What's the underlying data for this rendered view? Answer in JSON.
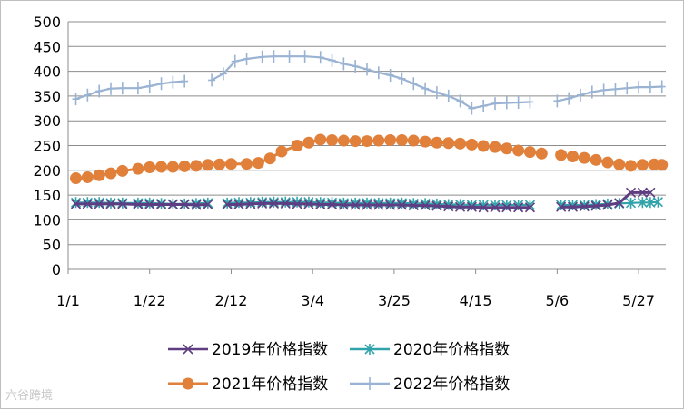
{
  "watermark": "六谷跨境",
  "chart_data": {
    "type": "line",
    "title": "",
    "xlabel": "",
    "ylabel": "",
    "ylim": [
      0,
      500
    ],
    "yticks": [
      0,
      50,
      100,
      150,
      200,
      250,
      300,
      350,
      400,
      450,
      500
    ],
    "x_range_day": [
      1,
      155
    ],
    "xticks": [
      {
        "day": 1,
        "label": "1/1"
      },
      {
        "day": 22,
        "label": "1/22"
      },
      {
        "day": 43,
        "label": "2/12"
      },
      {
        "day": 64,
        "label": "3/4"
      },
      {
        "day": 85,
        "label": "3/25"
      },
      {
        "day": 106,
        "label": "4/15"
      },
      {
        "day": 127,
        "label": "5/6"
      },
      {
        "day": 148,
        "label": "5/27"
      }
    ],
    "grid": "horizontal",
    "legend_position": "bottom",
    "series": [
      {
        "name": "2019年价格指数",
        "color": "#5f3d82",
        "marker": "x",
        "points": [
          [
            3,
            132
          ],
          [
            6,
            132
          ],
          [
            9,
            132
          ],
          [
            12,
            132
          ],
          [
            15,
            132
          ],
          [
            19,
            131
          ],
          [
            22,
            131
          ],
          [
            25,
            131
          ],
          [
            28,
            131
          ],
          [
            31,
            131
          ],
          [
            34,
            130
          ],
          [
            37,
            131
          ],
          [
            42,
            131
          ],
          [
            45,
            131
          ],
          [
            48,
            132
          ],
          [
            51,
            133
          ],
          [
            54,
            133
          ],
          [
            57,
            133
          ],
          [
            60,
            132
          ],
          [
            63,
            132
          ],
          [
            66,
            131
          ],
          [
            69,
            131
          ],
          [
            72,
            130
          ],
          [
            75,
            130
          ],
          [
            78,
            130
          ],
          [
            81,
            130
          ],
          [
            84,
            130
          ],
          [
            87,
            130
          ],
          [
            90,
            129
          ],
          [
            93,
            129
          ],
          [
            96,
            128
          ],
          [
            99,
            127
          ],
          [
            102,
            126
          ],
          [
            105,
            126
          ],
          [
            108,
            125
          ],
          [
            111,
            125
          ],
          [
            114,
            125
          ],
          [
            117,
            125
          ],
          [
            120,
            125
          ],
          [
            128,
            126
          ],
          [
            131,
            126
          ],
          [
            134,
            127
          ],
          [
            137,
            128
          ],
          [
            140,
            130
          ],
          [
            143,
            134
          ],
          [
            146,
            155
          ],
          [
            149,
            155
          ],
          [
            151,
            155
          ]
        ]
      },
      {
        "name": "2020年价格指数",
        "color": "#31a3aa",
        "marker": "star",
        "points": [
          [
            3,
            135
          ],
          [
            6,
            135
          ],
          [
            9,
            135
          ],
          [
            12,
            134
          ],
          [
            15,
            134
          ],
          [
            19,
            134
          ],
          [
            22,
            134
          ],
          [
            25,
            133
          ],
          [
            28,
            132
          ],
          [
            31,
            132
          ],
          [
            34,
            133
          ],
          [
            37,
            134
          ],
          [
            42,
            134
          ],
          [
            45,
            135
          ],
          [
            48,
            135
          ],
          [
            51,
            136
          ],
          [
            54,
            136
          ],
          [
            57,
            136
          ],
          [
            60,
            136
          ],
          [
            63,
            136
          ],
          [
            66,
            135
          ],
          [
            69,
            135
          ],
          [
            72,
            134
          ],
          [
            75,
            134
          ],
          [
            78,
            134
          ],
          [
            81,
            134
          ],
          [
            84,
            134
          ],
          [
            87,
            134
          ],
          [
            90,
            133
          ],
          [
            93,
            133
          ],
          [
            96,
            132
          ],
          [
            99,
            131
          ],
          [
            102,
            131
          ],
          [
            105,
            130
          ],
          [
            108,
            130
          ],
          [
            111,
            130
          ],
          [
            114,
            130
          ],
          [
            117,
            130
          ],
          [
            120,
            130
          ],
          [
            128,
            130
          ],
          [
            131,
            130
          ],
          [
            134,
            130
          ],
          [
            137,
            131
          ],
          [
            140,
            132
          ],
          [
            143,
            133
          ],
          [
            146,
            134
          ],
          [
            149,
            135
          ],
          [
            151,
            135
          ],
          [
            153,
            136
          ]
        ]
      },
      {
        "name": "2021年价格指数",
        "color": "#e0803a",
        "marker": "circle",
        "points": [
          [
            3,
            184
          ],
          [
            6,
            186
          ],
          [
            9,
            190
          ],
          [
            12,
            194
          ],
          [
            15,
            199
          ],
          [
            19,
            203
          ],
          [
            22,
            206
          ],
          [
            25,
            207
          ],
          [
            28,
            207
          ],
          [
            31,
            208
          ],
          [
            34,
            209
          ],
          [
            37,
            211
          ],
          [
            40,
            212
          ],
          [
            43,
            213
          ],
          [
            47,
            213
          ],
          [
            50,
            215
          ],
          [
            53,
            224
          ],
          [
            56,
            238
          ],
          [
            60,
            250
          ],
          [
            63,
            256
          ],
          [
            66,
            262
          ],
          [
            69,
            261
          ],
          [
            72,
            260
          ],
          [
            75,
            259
          ],
          [
            78,
            259
          ],
          [
            81,
            260
          ],
          [
            84,
            261
          ],
          [
            87,
            261
          ],
          [
            90,
            260
          ],
          [
            93,
            258
          ],
          [
            96,
            256
          ],
          [
            99,
            255
          ],
          [
            102,
            254
          ],
          [
            105,
            252
          ],
          [
            108,
            249
          ],
          [
            111,
            247
          ],
          [
            114,
            244
          ],
          [
            117,
            240
          ],
          [
            120,
            237
          ],
          [
            123,
            234
          ],
          [
            128,
            231
          ],
          [
            131,
            228
          ],
          [
            134,
            225
          ],
          [
            137,
            221
          ],
          [
            140,
            216
          ],
          [
            143,
            212
          ],
          [
            146,
            209
          ],
          [
            149,
            211
          ],
          [
            152,
            212
          ],
          [
            154,
            211
          ]
        ]
      },
      {
        "name": "2022年价格指数",
        "color": "#9bb3d3",
        "marker": "plus",
        "points": [
          [
            3,
            344
          ],
          [
            6,
            352
          ],
          [
            9,
            360
          ],
          [
            12,
            365
          ],
          [
            15,
            366
          ],
          [
            19,
            366
          ],
          [
            22,
            370
          ],
          [
            25,
            375
          ],
          [
            28,
            378
          ],
          [
            31,
            380
          ],
          [
            38,
            382
          ],
          [
            41,
            395
          ],
          [
            44,
            420
          ],
          [
            47,
            425
          ],
          [
            51,
            429
          ],
          [
            54,
            430
          ],
          [
            58,
            430
          ],
          [
            62,
            430
          ],
          [
            66,
            428
          ],
          [
            69,
            422
          ],
          [
            72,
            415
          ],
          [
            75,
            410
          ],
          [
            78,
            404
          ],
          [
            81,
            397
          ],
          [
            84,
            392
          ],
          [
            87,
            385
          ],
          [
            90,
            375
          ],
          [
            93,
            365
          ],
          [
            96,
            357
          ],
          [
            99,
            350
          ],
          [
            102,
            340
          ],
          [
            105,
            325
          ],
          [
            108,
            330
          ],
          [
            111,
            335
          ],
          [
            114,
            336
          ],
          [
            117,
            337
          ],
          [
            120,
            338
          ],
          [
            127,
            340
          ],
          [
            130,
            345
          ],
          [
            133,
            352
          ],
          [
            136,
            358
          ],
          [
            139,
            362
          ],
          [
            142,
            364
          ],
          [
            145,
            366
          ],
          [
            148,
            368
          ],
          [
            151,
            368
          ],
          [
            154,
            369
          ]
        ]
      }
    ]
  }
}
